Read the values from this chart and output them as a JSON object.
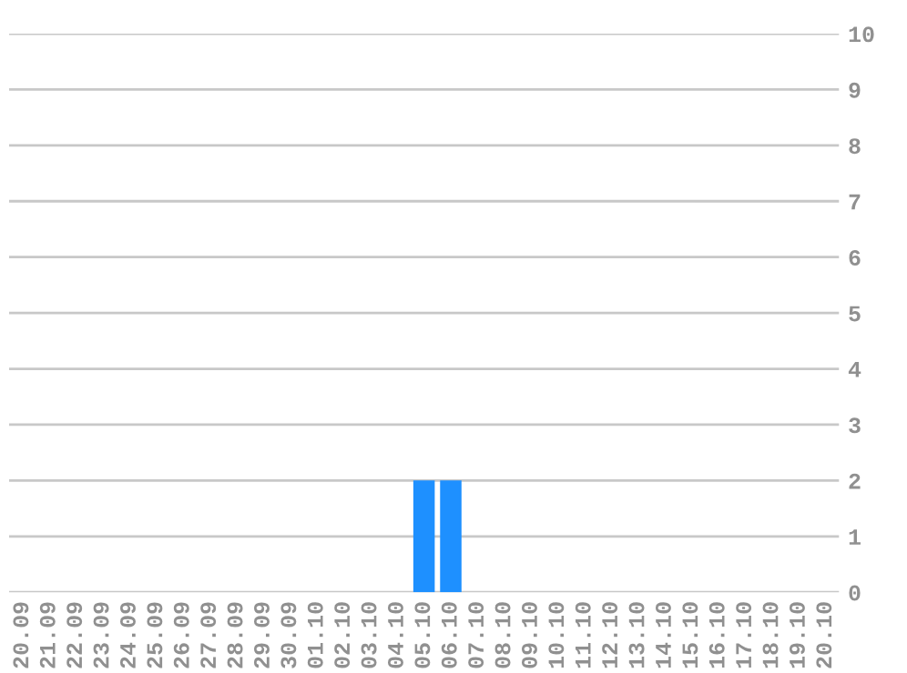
{
  "chart_data": {
    "type": "bar",
    "categories": [
      "20.09",
      "21.09",
      "22.09",
      "23.09",
      "24.09",
      "25.09",
      "26.09",
      "27.09",
      "28.09",
      "29.09",
      "30.09",
      "01.10",
      "02.10",
      "03.10",
      "04.10",
      "05.10",
      "06.10",
      "07.10",
      "08.10",
      "09.10",
      "10.10",
      "11.10",
      "12.10",
      "13.10",
      "14.10",
      "15.10",
      "16.10",
      "17.10",
      "18.10",
      "19.10",
      "20.10"
    ],
    "values": [
      0,
      0,
      0,
      0,
      0,
      0,
      0,
      0,
      0,
      0,
      0,
      0,
      0,
      0,
      0,
      2,
      2,
      0,
      0,
      0,
      0,
      0,
      0,
      0,
      0,
      0,
      0,
      0,
      0,
      0,
      0
    ],
    "color": "#1e90ff",
    "ylim": [
      0,
      10
    ],
    "yticks": [
      0,
      1,
      2,
      3,
      4,
      5,
      6,
      7,
      8,
      9,
      10
    ],
    "grid": "y",
    "legend": false
  }
}
